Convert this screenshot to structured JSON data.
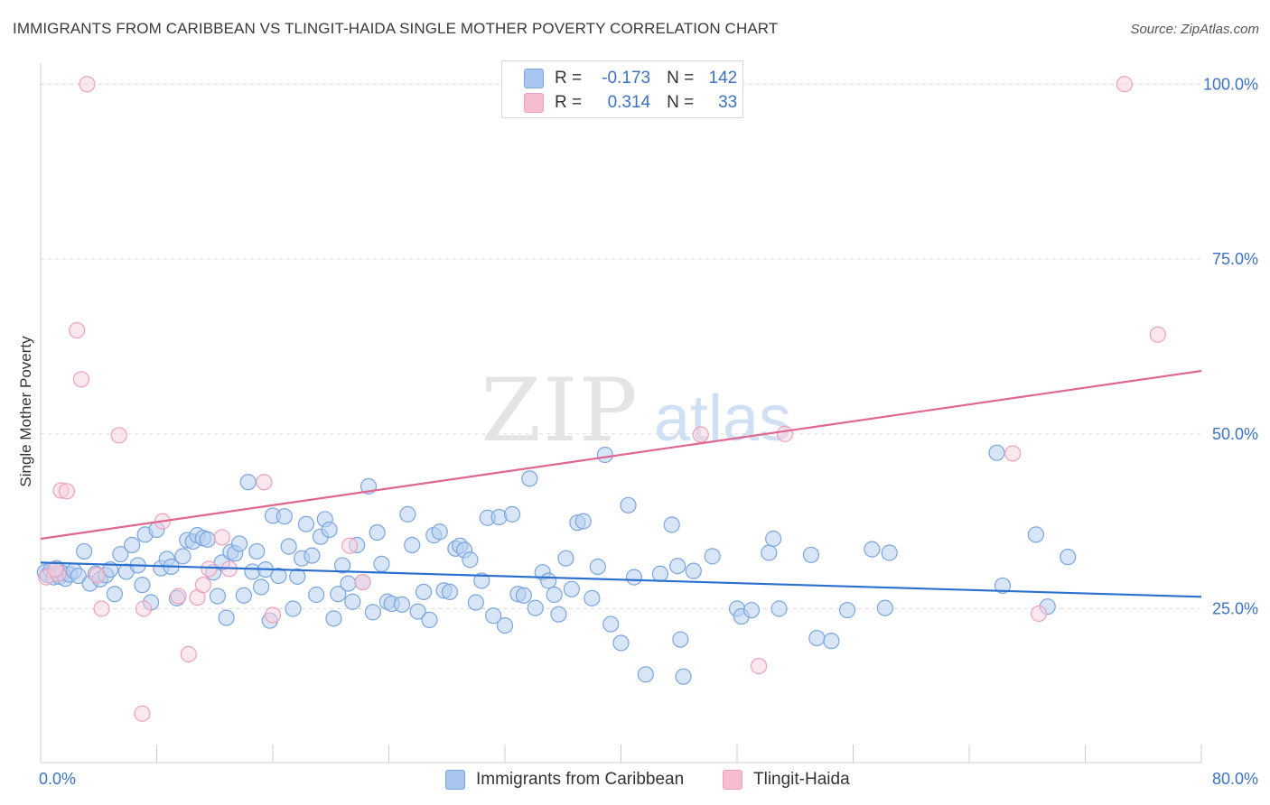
{
  "header": {
    "title": "IMMIGRANTS FROM CARIBBEAN VS TLINGIT-HAIDA SINGLE MOTHER POVERTY CORRELATION CHART",
    "source": "Source: ZipAtlas.com"
  },
  "watermark": {
    "zip": "ZIP",
    "atlas": "atlas"
  },
  "legend": {
    "r_label": "R =",
    "n_label": "N =",
    "rows": [
      {
        "r": "-0.173",
        "n": "142",
        "color": "#a9c6ee"
      },
      {
        "r": "0.314",
        "n": "33",
        "color": "#f5bcd0"
      }
    ]
  },
  "bottom_legend": [
    {
      "label": "Immigrants from Caribbean",
      "color": "#a9c6ee"
    },
    {
      "label": "Tlingit-Haida",
      "color": "#f5bcd0"
    }
  ],
  "colors": {
    "blue_stroke": "#7aa6df",
    "blue_fill": "#b8d0f0",
    "blue_line": "#2b6fd0",
    "pink_stroke": "#eea0bb",
    "pink_fill": "#f8cfdd",
    "pink_line": "#e0668f",
    "axis_text": "#3c72c4"
  },
  "chart_data": {
    "type": "scatter",
    "title": "IMMIGRANTS FROM CARIBBEAN VS TLINGIT-HAIDA SINGLE MOTHER POVERTY CORRELATION CHART",
    "xlabel": "",
    "ylabel": "Single Mother Poverty",
    "xlim": [
      0,
      80
    ],
    "ylim": [
      3,
      103
    ],
    "x_tick_labels": [
      "0.0%",
      "80.0%"
    ],
    "y_ticks": [
      25,
      50,
      75,
      100
    ],
    "y_tick_labels": [
      "25.0%",
      "50.0%",
      "75.0%",
      "100.0%"
    ],
    "grid": "horizontal dashed",
    "legend_position": "top-center",
    "series": [
      {
        "name": "Immigrants from Caribbean",
        "color": "#7aa6df",
        "trend": {
          "x": [
            0,
            80
          ],
          "y": [
            31.6,
            26.7
          ]
        },
        "points": [
          [
            0.3,
            30.2
          ],
          [
            0.5,
            29.8
          ],
          [
            0.7,
            30.5
          ],
          [
            0.9,
            29.5
          ],
          [
            1.1,
            30.8
          ],
          [
            1.3,
            29.6
          ],
          [
            1.5,
            30.1
          ],
          [
            1.7,
            29.3
          ],
          [
            2.0,
            29.9
          ],
          [
            2.3,
            30.4
          ],
          [
            2.6,
            29.7
          ],
          [
            3.0,
            33.2
          ],
          [
            3.4,
            28.6
          ],
          [
            3.8,
            30.0
          ],
          [
            4.1,
            29.2
          ],
          [
            4.5,
            29.8
          ],
          [
            4.8,
            30.6
          ],
          [
            5.1,
            27.1
          ],
          [
            5.5,
            32.8
          ],
          [
            5.9,
            30.3
          ],
          [
            6.3,
            34.1
          ],
          [
            6.7,
            31.2
          ],
          [
            7.0,
            28.4
          ],
          [
            7.2,
            35.6
          ],
          [
            7.6,
            25.9
          ],
          [
            8.0,
            36.3
          ],
          [
            8.3,
            30.8
          ],
          [
            8.7,
            32.1
          ],
          [
            9.0,
            31.0
          ],
          [
            9.4,
            26.5
          ],
          [
            9.8,
            32.5
          ],
          [
            10.1,
            34.8
          ],
          [
            10.5,
            34.6
          ],
          [
            10.8,
            35.5
          ],
          [
            11.2,
            35.1
          ],
          [
            11.5,
            34.9
          ],
          [
            11.9,
            30.2
          ],
          [
            12.2,
            26.8
          ],
          [
            12.5,
            31.6
          ],
          [
            12.8,
            23.7
          ],
          [
            13.1,
            33.1
          ],
          [
            13.4,
            32.9
          ],
          [
            13.7,
            34.3
          ],
          [
            14.0,
            26.9
          ],
          [
            14.3,
            43.1
          ],
          [
            14.6,
            30.3
          ],
          [
            14.9,
            33.2
          ],
          [
            15.2,
            28.1
          ],
          [
            15.5,
            30.6
          ],
          [
            15.8,
            23.3
          ],
          [
            16.0,
            38.3
          ],
          [
            16.4,
            29.7
          ],
          [
            16.8,
            38.2
          ],
          [
            17.1,
            33.9
          ],
          [
            17.4,
            25.0
          ],
          [
            17.7,
            29.6
          ],
          [
            18.0,
            32.2
          ],
          [
            18.3,
            37.1
          ],
          [
            18.7,
            32.6
          ],
          [
            19.0,
            27.0
          ],
          [
            19.3,
            35.3
          ],
          [
            19.6,
            37.8
          ],
          [
            19.9,
            36.3
          ],
          [
            20.2,
            23.6
          ],
          [
            20.5,
            27.1
          ],
          [
            20.8,
            31.2
          ],
          [
            21.2,
            28.6
          ],
          [
            21.5,
            26.0
          ],
          [
            21.8,
            34.1
          ],
          [
            22.2,
            28.8
          ],
          [
            22.6,
            42.5
          ],
          [
            22.9,
            24.5
          ],
          [
            23.2,
            35.9
          ],
          [
            23.5,
            31.4
          ],
          [
            23.9,
            26.0
          ],
          [
            24.2,
            25.7
          ],
          [
            24.9,
            25.6
          ],
          [
            25.3,
            38.5
          ],
          [
            25.6,
            34.1
          ],
          [
            26.0,
            24.6
          ],
          [
            26.4,
            27.4
          ],
          [
            26.8,
            23.4
          ],
          [
            27.1,
            35.5
          ],
          [
            27.5,
            36.0
          ],
          [
            27.8,
            27.6
          ],
          [
            28.2,
            27.4
          ],
          [
            28.6,
            33.6
          ],
          [
            28.9,
            34.0
          ],
          [
            29.2,
            33.4
          ],
          [
            29.6,
            32.0
          ],
          [
            30.0,
            25.9
          ],
          [
            30.4,
            29.0
          ],
          [
            30.8,
            38.0
          ],
          [
            31.2,
            24.0
          ],
          [
            31.6,
            38.1
          ],
          [
            32.0,
            22.6
          ],
          [
            32.5,
            38.5
          ],
          [
            32.9,
            27.1
          ],
          [
            33.3,
            26.9
          ],
          [
            33.7,
            43.6
          ],
          [
            34.1,
            25.1
          ],
          [
            34.6,
            30.2
          ],
          [
            35.0,
            29.0
          ],
          [
            35.4,
            27.0
          ],
          [
            35.7,
            24.2
          ],
          [
            36.2,
            32.2
          ],
          [
            36.6,
            27.8
          ],
          [
            37.0,
            37.3
          ],
          [
            37.4,
            37.5
          ],
          [
            38.0,
            26.5
          ],
          [
            38.4,
            31.0
          ],
          [
            38.9,
            47.0
          ],
          [
            39.3,
            22.8
          ],
          [
            40.0,
            20.1
          ],
          [
            40.5,
            39.8
          ],
          [
            40.9,
            29.5
          ],
          [
            41.7,
            15.6
          ],
          [
            42.7,
            30.0
          ],
          [
            43.5,
            37.0
          ],
          [
            43.9,
            31.1
          ],
          [
            44.1,
            20.6
          ],
          [
            44.3,
            15.3
          ],
          [
            45.0,
            30.4
          ],
          [
            46.3,
            32.5
          ],
          [
            48.0,
            25.0
          ],
          [
            48.3,
            23.9
          ],
          [
            49.0,
            24.8
          ],
          [
            50.2,
            33.0
          ],
          [
            50.5,
            35.0
          ],
          [
            50.9,
            25.0
          ],
          [
            53.1,
            32.7
          ],
          [
            53.5,
            20.8
          ],
          [
            54.5,
            20.4
          ],
          [
            55.6,
            24.8
          ],
          [
            57.3,
            33.5
          ],
          [
            58.2,
            25.1
          ],
          [
            58.5,
            33.0
          ],
          [
            65.9,
            47.3
          ],
          [
            66.3,
            28.3
          ],
          [
            68.6,
            35.6
          ],
          [
            69.4,
            25.3
          ],
          [
            70.8,
            32.4
          ]
        ]
      },
      {
        "name": "Tlingit-Haida",
        "color": "#eea0bb",
        "trend": {
          "x": [
            0,
            80
          ],
          "y": [
            35.0,
            59.0
          ]
        },
        "points": [
          [
            0.4,
            29.5
          ],
          [
            1.2,
            30.0
          ],
          [
            1.4,
            41.9
          ],
          [
            1.8,
            41.8
          ],
          [
            2.5,
            64.8
          ],
          [
            2.8,
            57.8
          ],
          [
            3.2,
            100.0
          ],
          [
            3.9,
            29.8
          ],
          [
            4.2,
            25.0
          ],
          [
            5.4,
            49.8
          ],
          [
            7.1,
            25.0
          ],
          [
            7.0,
            10.0
          ],
          [
            8.4,
            37.5
          ],
          [
            9.5,
            26.8
          ],
          [
            10.2,
            18.5
          ],
          [
            10.8,
            26.6
          ],
          [
            11.2,
            28.4
          ],
          [
            11.6,
            30.7
          ],
          [
            12.5,
            35.2
          ],
          [
            13.0,
            30.7
          ],
          [
            15.4,
            43.1
          ],
          [
            16.0,
            24.1
          ],
          [
            21.3,
            34.0
          ],
          [
            22.2,
            28.8
          ],
          [
            36.6,
            100.0
          ],
          [
            45.5,
            49.9
          ],
          [
            49.5,
            16.8
          ],
          [
            51.3,
            50.0
          ],
          [
            67.0,
            47.2
          ],
          [
            68.8,
            24.3
          ],
          [
            74.7,
            100.0
          ],
          [
            77.0,
            64.2
          ],
          [
            1.0,
            30.6
          ]
        ]
      }
    ]
  }
}
